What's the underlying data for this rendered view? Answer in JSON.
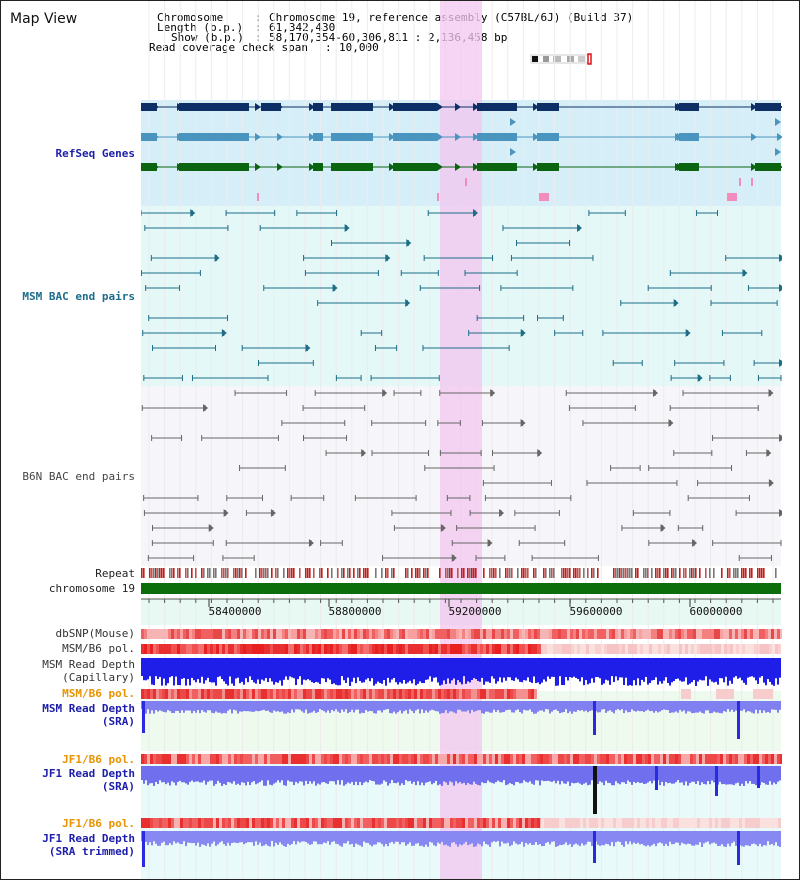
{
  "view": {
    "title": "Map View"
  },
  "info": {
    "chromosome_key": "Chromosome",
    "chromosome_value": "Chromosome 19, reference assembly (C57BL/6J) (Build 37)",
    "length_key": "Length (b.p.)",
    "length_value": "61,342,430",
    "show_key": "Show (b.p.)",
    "show_value": "58,170,354-60,306,811 : 2,136,458 bp",
    "coverage_key": "Read coverage check span",
    "coverage_value": "10,000"
  },
  "tracks": {
    "refseq": "RefSeq Genes",
    "msm_bac": "MSM BAC end pairs",
    "b6n_bac": "B6N BAC end pairs",
    "repeat": "Repeat",
    "chromosome": "chromosome 19",
    "dbsnp": "dbSNP(Mouse)",
    "msm_b6_pol_1": "MSM/B6 pol.",
    "msm_read_depth_cap_1": "MSM Read Depth",
    "msm_read_depth_cap_2": "(Capillary)",
    "msm_b6_pol_2": "MSM/B6 pol.",
    "msm_read_depth_sra_1": "MSM Read Depth",
    "msm_read_depth_sra_2": "(SRA)",
    "jf1_b6_pol_1": "JF1/B6 pol.",
    "jf1_read_depth_1": "JF1 Read Depth",
    "jf1_read_depth_2": "(SRA)",
    "jf1_b6_pol_2": "JF1/B6 pol.",
    "jf1_read_depth_trim_1": "JF1 Read Depth",
    "jf1_read_depth_trim_2": "(SRA trimmed)"
  },
  "axis": {
    "ticks": [
      "58400000",
      "58800000",
      "59200000",
      "59600000",
      "60000000"
    ]
  },
  "colors": {
    "refseq_dark": "#0d2f66",
    "refseq_mid": "#4a95bf",
    "refseq_green": "#0a6410",
    "highlight": "#f3c6ef",
    "msm_bac": "#1d6d87",
    "b6n_bac": "#666666",
    "chromosome": "#0b6e0b",
    "depth_blue": "#1a1ae6",
    "depth_light": "#7878ef",
    "label_blue": "#1d1dab",
    "label_teal": "#1d6c8c",
    "label_orange": "#e89400"
  }
}
